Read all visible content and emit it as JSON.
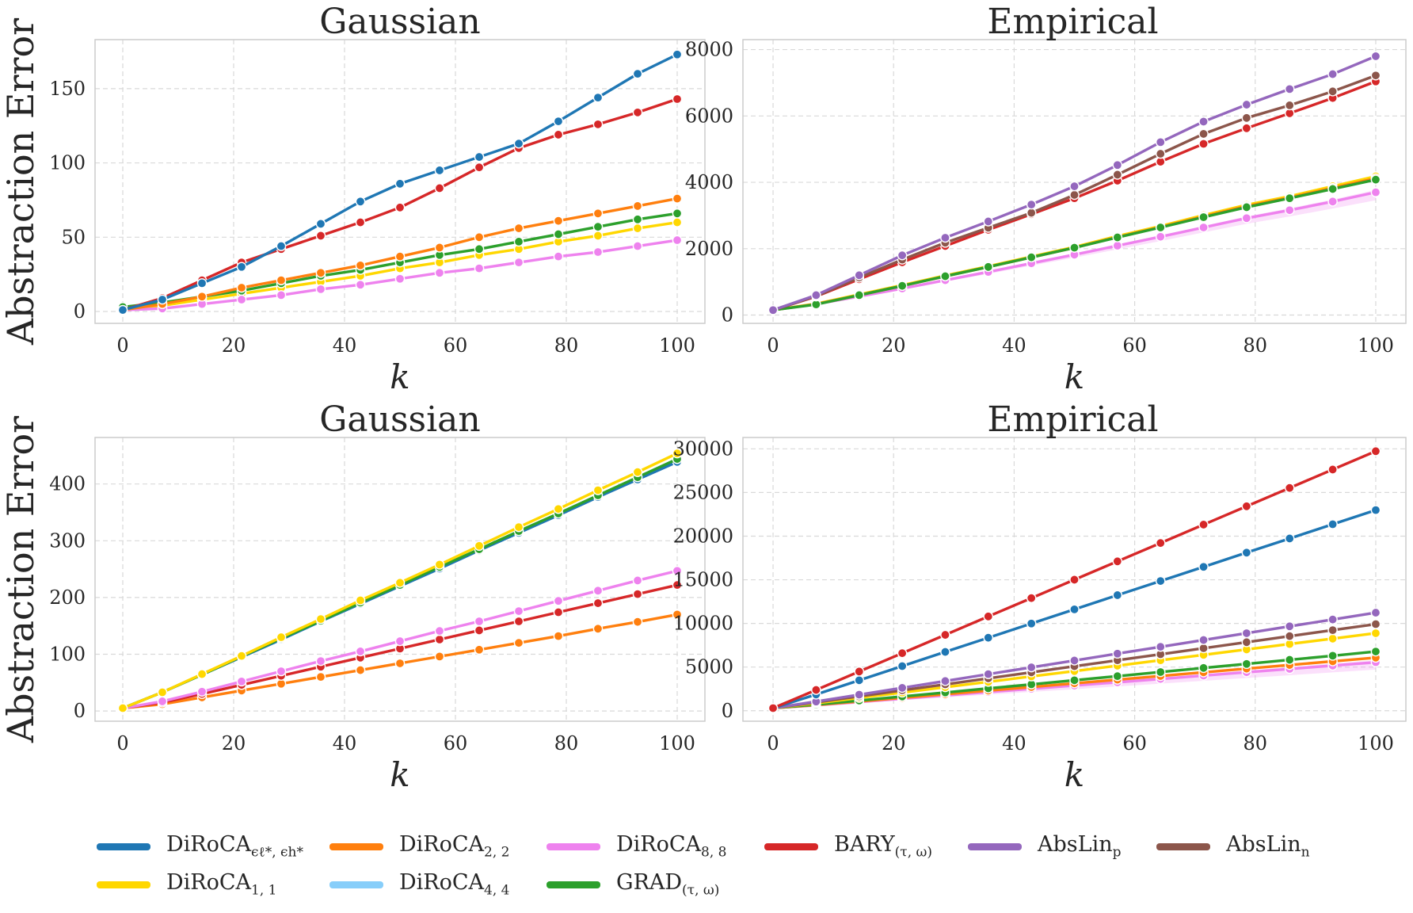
{
  "colors": {
    "diroca_eps": "#1f77b4",
    "diroca_1": "#ffd700",
    "diroca_2": "#ff7f0e",
    "diroca_4": "#87cefa",
    "diroca_8": "#ee82ee",
    "grad": "#2ca02c",
    "bary": "#d62728",
    "abslin_p": "#9467bd",
    "abslin_n": "#8c564b"
  },
  "legend": {
    "items": [
      {
        "key": "diroca_eps",
        "label": "DiRoCA",
        "sub": "ϵℓ*, ϵh*"
      },
      {
        "key": "diroca_2",
        "label": "DiRoCA",
        "sub": "2, 2"
      },
      {
        "key": "diroca_8",
        "label": "DiRoCA",
        "sub": "8, 8"
      },
      {
        "key": "bary",
        "label": "BARY",
        "sub": "(τ, ω)"
      },
      {
        "key": "abslin_p",
        "label": "AbsLin",
        "sub": "p"
      },
      {
        "key": "abslin_n",
        "label": "AbsLin",
        "sub": "n"
      },
      {
        "key": "diroca_1",
        "label": "DiRoCA",
        "sub": "1, 1"
      },
      {
        "key": "diroca_4",
        "label": "DiRoCA",
        "sub": "4, 4"
      },
      {
        "key": "grad",
        "label": "GRAD",
        "sub": "(τ, ω)"
      }
    ]
  },
  "chart_data": [
    {
      "type": "line",
      "title": "Gaussian",
      "xlabel": "k",
      "ylabel": "Abstraction Error",
      "xlim": [
        -5,
        105
      ],
      "ylim": [
        -8,
        183
      ],
      "xticks": [
        0,
        20,
        40,
        60,
        80,
        100
      ],
      "yticks": [
        0,
        50,
        100,
        150
      ],
      "x": [
        0,
        7.14,
        14.29,
        21.43,
        28.57,
        35.71,
        42.86,
        50,
        57.14,
        64.29,
        71.43,
        78.57,
        85.71,
        92.86,
        100
      ],
      "series": [
        {
          "name": "DiRoCA_1,1",
          "key": "diroca_1",
          "values": [
            1,
            4,
            8,
            12,
            16,
            20,
            24,
            29,
            33,
            38,
            42,
            47,
            51,
            56,
            60
          ]
        },
        {
          "name": "DiRoCA_8,8",
          "key": "diroca_8",
          "values": [
            1,
            2,
            5,
            8,
            11,
            15,
            18,
            22,
            26,
            29,
            33,
            37,
            40,
            44,
            48
          ]
        },
        {
          "name": "GRAD_(τ,ω)",
          "key": "grad",
          "values": [
            3,
            6,
            10,
            14,
            19,
            24,
            28,
            33,
            38,
            42,
            47,
            52,
            57,
            62,
            66
          ]
        },
        {
          "name": "DiRoCA_2,2",
          "key": "diroca_2",
          "values": [
            1,
            5,
            10,
            16,
            21,
            26,
            31,
            37,
            43,
            50,
            56,
            61,
            66,
            71,
            76
          ]
        },
        {
          "name": "BARY_(τ,ω)",
          "key": "bary",
          "values": [
            1,
            9,
            21,
            33,
            42,
            51,
            60,
            70,
            83,
            97,
            110,
            119,
            126,
            134,
            143
          ]
        },
        {
          "name": "DiRoCA_ϵℓ*,ϵh*",
          "key": "diroca_eps",
          "values": [
            1,
            8,
            19,
            30,
            44,
            59,
            74,
            86,
            95,
            104,
            113,
            128,
            144,
            160,
            173
          ]
        }
      ]
    },
    {
      "type": "line",
      "title": "Empirical",
      "xlabel": "k",
      "ylabel": "",
      "xlim": [
        -5,
        105
      ],
      "ylim": [
        -250,
        8300
      ],
      "xticks": [
        0,
        20,
        40,
        60,
        80,
        100
      ],
      "yticks": [
        0,
        2000,
        4000,
        6000,
        8000
      ],
      "x": [
        0,
        7.14,
        14.29,
        21.43,
        28.57,
        35.71,
        42.86,
        50,
        57.14,
        64.29,
        71.43,
        78.57,
        85.71,
        92.86,
        100
      ],
      "series": [
        {
          "name": "DiRoCA_8,8",
          "key": "diroca_8",
          "values": [
            150,
            330,
            560,
            800,
            1050,
            1300,
            1560,
            1820,
            2090,
            2360,
            2640,
            2920,
            3160,
            3420,
            3700
          ],
          "band": [
            0,
            10,
            20,
            30,
            40,
            60,
            70,
            90,
            110,
            130,
            150,
            170,
            190,
            210,
            240
          ]
        },
        {
          "name": "DiRoCA_1,1",
          "key": "diroca_1",
          "values": [
            150,
            340,
            620,
            900,
            1190,
            1470,
            1760,
            2050,
            2380,
            2680,
            3010,
            3320,
            3580,
            3880,
            4180
          ]
        },
        {
          "name": "DiRoCA_2,2",
          "key": "diroca_2",
          "values": [
            150,
            330,
            600,
            880,
            1170,
            1450,
            1740,
            2030,
            2350,
            2650,
            2970,
            3280,
            3540,
            3830,
            4120
          ]
        },
        {
          "name": "GRAD_(τ,ω)",
          "key": "grad",
          "values": [
            150,
            320,
            600,
            880,
            1170,
            1450,
            1740,
            2030,
            2340,
            2640,
            2950,
            3250,
            3520,
            3800,
            4080
          ]
        },
        {
          "name": "BARY_(τ,ω)",
          "key": "bary",
          "values": [
            150,
            560,
            1080,
            1590,
            2080,
            2570,
            3040,
            3520,
            4050,
            4620,
            5160,
            5630,
            6080,
            6540,
            7040
          ]
        },
        {
          "name": "AbsLin_n",
          "key": "abslin_n",
          "values": [
            150,
            570,
            1130,
            1670,
            2180,
            2630,
            3080,
            3620,
            4230,
            4860,
            5460,
            5940,
            6320,
            6740,
            7220
          ]
        },
        {
          "name": "AbsLin_p",
          "key": "abslin_p",
          "values": [
            150,
            600,
            1200,
            1800,
            2330,
            2820,
            3330,
            3880,
            4520,
            5210,
            5830,
            6340,
            6810,
            7260,
            7800
          ]
        }
      ]
    },
    {
      "type": "line",
      "title": "Gaussian",
      "xlabel": "k",
      "ylabel": "Abstraction Error",
      "xlim": [
        -5,
        105
      ],
      "ylim": [
        -18,
        482
      ],
      "xticks": [
        0,
        20,
        40,
        60,
        80,
        100
      ],
      "yticks": [
        0,
        100,
        200,
        300,
        400
      ],
      "x": [
        0,
        7.14,
        14.29,
        21.43,
        28.57,
        35.71,
        42.86,
        50,
        57.14,
        64.29,
        71.43,
        78.57,
        85.71,
        92.86,
        100
      ],
      "series": [
        {
          "name": "DiRoCA_2,2",
          "key": "diroca_2",
          "values": [
            5,
            12,
            24,
            36,
            48,
            60,
            72,
            84,
            96,
            108,
            120,
            132,
            145,
            157,
            170
          ]
        },
        {
          "name": "BARY_(τ,ω)",
          "key": "bary",
          "values": [
            5,
            15,
            30,
            46,
            62,
            78,
            94,
            110,
            126,
            142,
            158,
            174,
            190,
            206,
            222
          ]
        },
        {
          "name": "DiRoCA_8,8",
          "key": "diroca_8",
          "values": [
            5,
            17,
            34,
            52,
            70,
            88,
            105,
            123,
            141,
            158,
            176,
            194,
            212,
            230,
            247
          ]
        },
        {
          "name": "DiRoCA_ϵℓ*,ϵh*",
          "key": "diroca_eps",
          "values": [
            5,
            33,
            64,
            95,
            126,
            158,
            189,
            220,
            251,
            283,
            314,
            345,
            377,
            408,
            439
          ]
        },
        {
          "name": "GRAD_(τ,ω)",
          "key": "grad",
          "values": [
            5,
            33,
            64,
            96,
            128,
            159,
            191,
            222,
            254,
            285,
            317,
            348,
            380,
            412,
            444
          ]
        },
        {
          "name": "DiRoCA_1,1",
          "key": "diroca_1",
          "values": [
            5,
            33,
            65,
            97,
            130,
            162,
            195,
            226,
            258,
            291,
            324,
            356,
            389,
            421,
            454
          ]
        }
      ]
    },
    {
      "type": "line",
      "title": "Empirical",
      "xlabel": "k",
      "ylabel": "",
      "xlim": [
        -5,
        105
      ],
      "ylim": [
        -1200,
        31300
      ],
      "xticks": [
        0,
        20,
        40,
        60,
        80,
        100
      ],
      "yticks": [
        0,
        5000,
        10000,
        15000,
        20000,
        25000,
        30000
      ],
      "x": [
        0,
        7.14,
        14.29,
        21.43,
        28.57,
        35.71,
        42.86,
        50,
        57.14,
        64.29,
        71.43,
        78.57,
        85.71,
        92.86,
        100
      ],
      "series": [
        {
          "name": "DiRoCA_8,8",
          "key": "diroca_8",
          "values": [
            300,
            620,
            1000,
            1380,
            1760,
            2140,
            2520,
            2890,
            3260,
            3640,
            4030,
            4410,
            4790,
            5170,
            5550
          ],
          "band": [
            0,
            60,
            120,
            180,
            240,
            300,
            360,
            420,
            480,
            540,
            600,
            660,
            720,
            780,
            840
          ]
        },
        {
          "name": "DiRoCA_2,2",
          "key": "diroca_2",
          "values": [
            300,
            660,
            1070,
            1480,
            1890,
            2310,
            2720,
            3140,
            3560,
            3980,
            4400,
            4820,
            5240,
            5660,
            6080
          ]
        },
        {
          "name": "GRAD_(τ,ω)",
          "key": "grad",
          "values": [
            300,
            710,
            1170,
            1630,
            2090,
            2560,
            3020,
            3490,
            3960,
            4430,
            4900,
            5360,
            5830,
            6300,
            6780
          ]
        },
        {
          "name": "DiRoCA_1,1",
          "key": "diroca_1",
          "values": [
            300,
            860,
            1470,
            2080,
            2700,
            3310,
            3930,
            4540,
            5160,
            5780,
            6400,
            7020,
            7640,
            8260,
            8880
          ]
        },
        {
          "name": "AbsLin_n",
          "key": "abslin_n",
          "values": [
            300,
            960,
            1650,
            2340,
            3020,
            3710,
            4400,
            5090,
            5780,
            6470,
            7160,
            7850,
            8540,
            9230,
            9920
          ]
        },
        {
          "name": "AbsLin_p",
          "key": "abslin_p",
          "values": [
            300,
            1050,
            1840,
            2620,
            3400,
            4190,
            4970,
            5750,
            6540,
            7320,
            8100,
            8880,
            9670,
            10450,
            11230
          ]
        },
        {
          "name": "DiRoCA_ϵℓ*,ϵh*",
          "key": "diroca_eps",
          "values": [
            300,
            1860,
            3490,
            5110,
            6740,
            8360,
            9990,
            11610,
            13240,
            14860,
            16480,
            18110,
            19730,
            21360,
            22980
          ]
        },
        {
          "name": "BARY_(τ,ω)",
          "key": "bary",
          "values": [
            300,
            2380,
            4490,
            6590,
            8690,
            10800,
            12900,
            15010,
            17110,
            19210,
            21320,
            23420,
            25520,
            27630,
            29730
          ]
        }
      ]
    }
  ]
}
